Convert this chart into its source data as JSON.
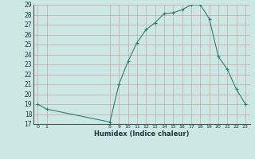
{
  "x": [
    0,
    1,
    8,
    9,
    10,
    11,
    12,
    13,
    14,
    15,
    16,
    17,
    18,
    19,
    20,
    21,
    22,
    23
  ],
  "y": [
    19,
    18.5,
    17.2,
    21,
    23.3,
    25.2,
    26.5,
    27.2,
    28.1,
    28.2,
    28.5,
    29.0,
    29.0,
    27.6,
    23.8,
    22.5,
    20.5,
    19.0
  ],
  "xlim": [
    -0.5,
    23.5
  ],
  "ylim": [
    17,
    29
  ],
  "xticks": [
    0,
    1,
    8,
    9,
    10,
    11,
    12,
    13,
    14,
    15,
    16,
    17,
    18,
    19,
    20,
    21,
    22,
    23
  ],
  "yticks": [
    17,
    18,
    19,
    20,
    21,
    22,
    23,
    24,
    25,
    26,
    27,
    28,
    29
  ],
  "xlabel": "Humidex (Indice chaleur)",
  "line_color": "#2e7d6e",
  "marker": "+",
  "bg_color": "#cce8e4",
  "grid_color": "#b0d4cf",
  "font_color": "#1a3a3a"
}
